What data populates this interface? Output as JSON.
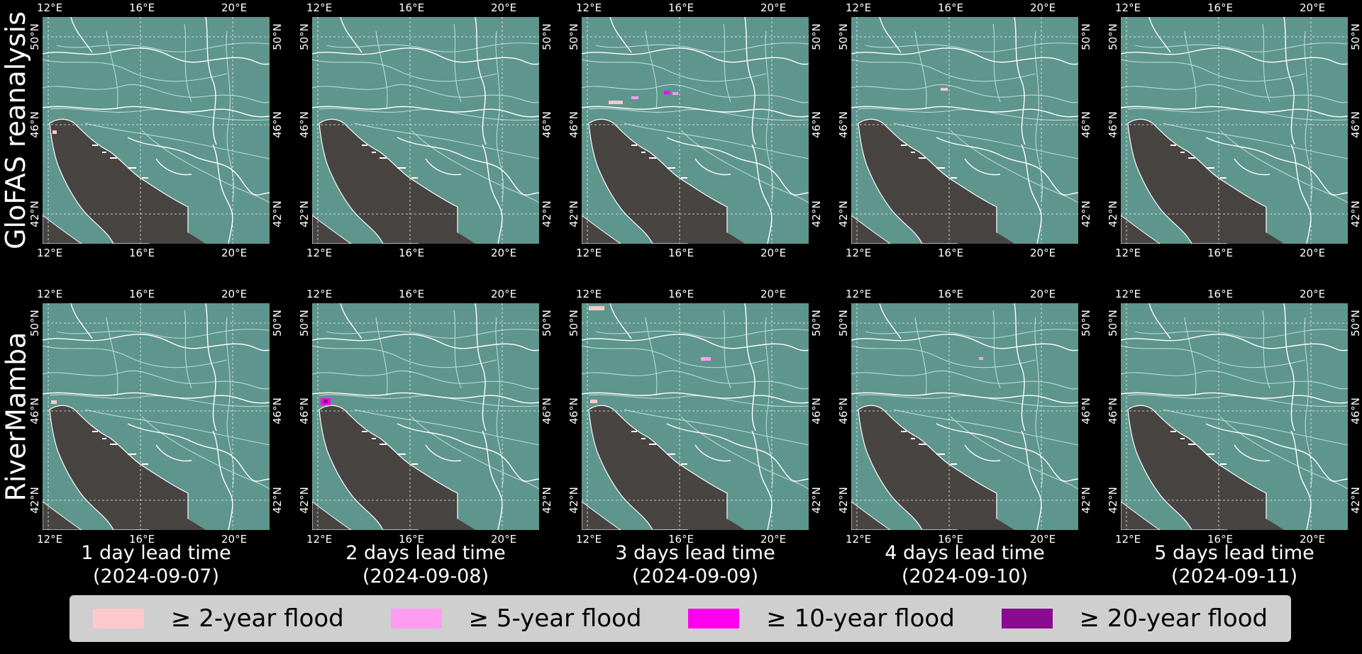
{
  "rows": [
    {
      "label": "GloFAS reanalysis"
    },
    {
      "label": "RiverMamba"
    }
  ],
  "columns": [
    {
      "lead": "1 day lead time",
      "date": "(2024-09-07)"
    },
    {
      "lead": "2 days lead time",
      "date": "(2024-09-08)"
    },
    {
      "lead": "3 days lead time",
      "date": "(2024-09-09)"
    },
    {
      "lead": "4 days lead time",
      "date": "(2024-09-10)"
    },
    {
      "lead": "5 days lead time",
      "date": "(2024-09-11)"
    }
  ],
  "lon_ticks": [
    "12°E",
    "16°E",
    "20°E"
  ],
  "lat_ticks": [
    "50°N",
    "46°N",
    "42°N"
  ],
  "legend": [
    {
      "label": "≥  2-year flood",
      "color": "#ffc8cc"
    },
    {
      "label": "≥  5-year flood",
      "color": "#ff9cf2"
    },
    {
      "label": "≥  10-year flood",
      "color": "#ff00ee"
    },
    {
      "label": "≥  20-year flood",
      "color": "#8a0a90"
    }
  ],
  "colors": {
    "land": "#5e958d",
    "sea": "#474441",
    "rivers": "#d7f2ee"
  }
}
